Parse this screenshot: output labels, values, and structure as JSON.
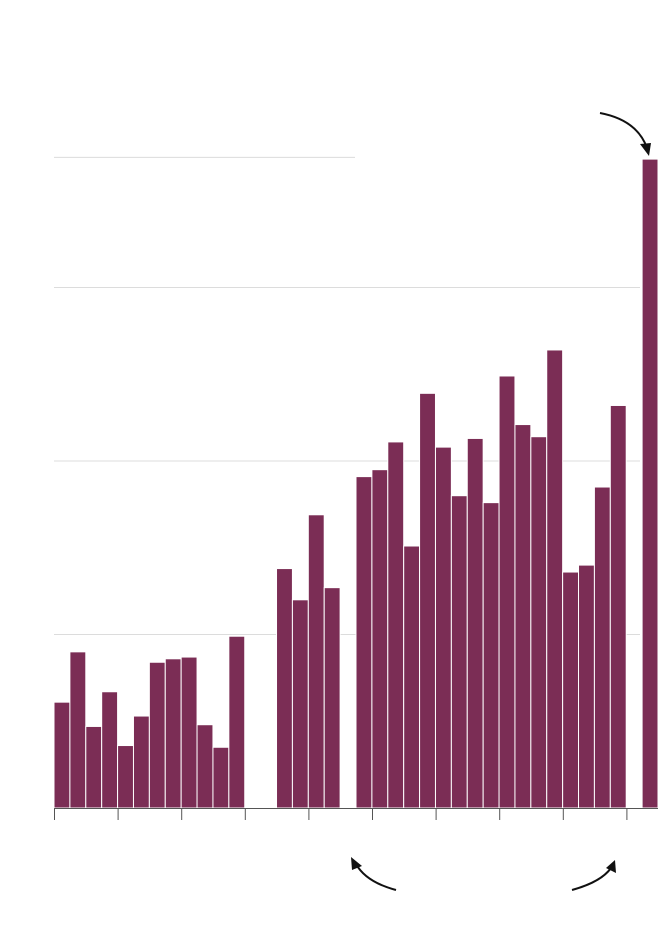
{
  "chart_data": {
    "type": "bar",
    "bar_color": "#7b2d55",
    "annotation_color": "#111111",
    "grid": true,
    "x_ticks": 10,
    "ylim": [
      0,
      3.75
    ],
    "y_gridlines": [
      1,
      2,
      3,
      3.75
    ],
    "values": [
      0.61,
      0.9,
      0.47,
      0.67,
      0.36,
      0.53,
      0.84,
      0.86,
      0.87,
      0.48,
      0.35,
      0.99,
      null,
      null,
      1.38,
      1.2,
      1.69,
      1.27,
      null,
      1.91,
      1.95,
      2.11,
      1.51,
      2.39,
      2.08,
      1.8,
      2.13,
      1.76,
      2.49,
      2.21,
      2.14,
      2.64,
      1.36,
      1.4,
      1.85,
      2.32,
      null,
      3.74
    ]
  }
}
